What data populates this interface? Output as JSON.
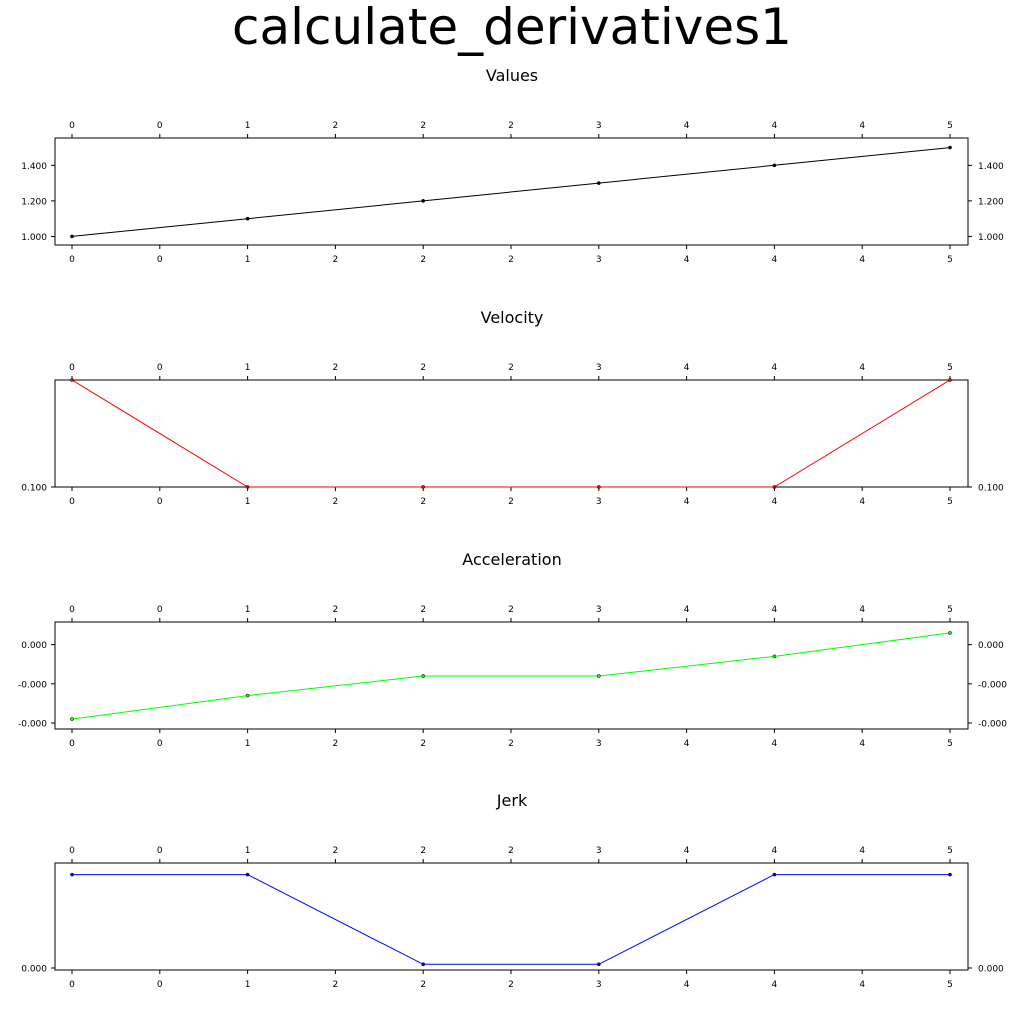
{
  "title": "calculate_derivatives1",
  "chart_data": [
    {
      "type": "line",
      "title": "Values",
      "color": "#000000",
      "x": [
        0,
        1,
        2,
        3,
        4,
        5
      ],
      "x_tick_labels": [
        "0",
        "0",
        "1",
        "2",
        "2",
        "2",
        "3",
        "4",
        "4",
        "4",
        "5"
      ],
      "y": [
        1.0,
        1.1,
        1.2,
        1.3,
        1.4,
        1.5
      ],
      "ylim": [
        0.98,
        1.52
      ],
      "y_ticks": [
        1.0,
        1.2,
        1.4
      ],
      "y_tick_labels": [
        "1.000",
        "1.200",
        "1.400"
      ]
    },
    {
      "type": "line",
      "title": "Velocity",
      "color": "#ff0000",
      "x": [
        0,
        1,
        2,
        3,
        4,
        5
      ],
      "x_tick_labels": [
        "0",
        "0",
        "1",
        "2",
        "2",
        "2",
        "3",
        "4",
        "4",
        "4",
        "5"
      ],
      "y": [
        0.1001,
        0.1,
        0.1,
        0.1,
        0.1,
        0.1001
      ],
      "ylim": [
        0.1,
        0.1001
      ],
      "y_ticks": [
        0.1
      ],
      "y_tick_labels": [
        "0.100"
      ]
    },
    {
      "type": "line",
      "title": "Acceleration",
      "color": "#00ff00",
      "x": [
        0,
        1,
        2,
        3,
        4,
        5
      ],
      "x_tick_labels": [
        "0",
        "0",
        "1",
        "2",
        "2",
        "2",
        "3",
        "4",
        "4",
        "4",
        "5"
      ],
      "y": [
        -0.00019,
        -0.00013,
        -8e-05,
        -8e-05,
        -3e-05,
        3e-05
      ],
      "ylim": [
        -0.0002,
        4e-05
      ],
      "y_ticks": [
        -0.0002,
        -0.0001,
        0.0
      ],
      "y_tick_labels": [
        "-0.000",
        "-0.000",
        "0.000"
      ]
    },
    {
      "type": "line",
      "title": "Jerk",
      "color": "#0000ff",
      "x": [
        0,
        1,
        2,
        3,
        4,
        5
      ],
      "x_tick_labels": [
        "0",
        "0",
        "1",
        "2",
        "2",
        "2",
        "3",
        "4",
        "4",
        "4",
        "5"
      ],
      "y": [
        0.0001,
        0.0001,
        4e-06,
        4e-06,
        0.0001,
        0.0001
      ],
      "ylim": [
        0.0,
        0.000106
      ],
      "y_ticks": [
        0.0
      ],
      "y_tick_labels": [
        "0.000"
      ]
    }
  ]
}
